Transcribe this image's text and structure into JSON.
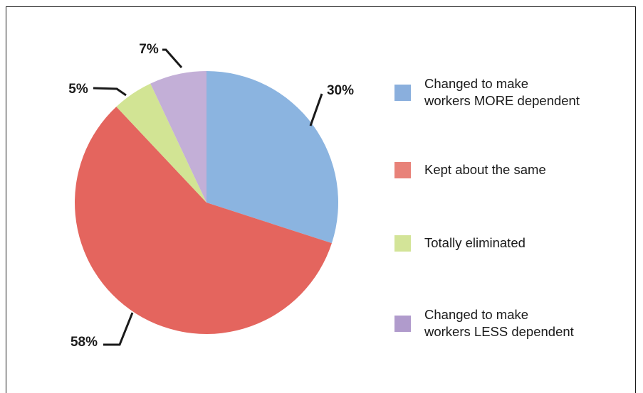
{
  "chart_data": {
    "type": "pie",
    "title": "",
    "slices": [
      {
        "label": "Changed to make\nworkers MORE dependent",
        "value": 30,
        "value_label": "30%",
        "color": "#8bb4e0"
      },
      {
        "label": "Kept about the same",
        "value": 58,
        "value_label": "58%",
        "color": "#e4655e"
      },
      {
        "label": "Totally eliminated",
        "value": 5,
        "value_label": "5%",
        "color": "#d2e494"
      },
      {
        "label": "Changed to make\nworkers LESS dependent",
        "value": 7,
        "value_label": "7%",
        "color": "#c3afd7"
      }
    ],
    "legend": {
      "position": "right",
      "swatch_colors": [
        "#8aafdd",
        "#e88279",
        "#d3e498",
        "#b09bcc"
      ]
    }
  }
}
